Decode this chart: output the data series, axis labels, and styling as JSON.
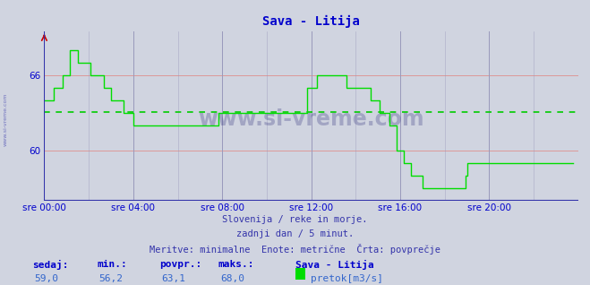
{
  "title": "Sava - Litija",
  "title_color": "#0000cc",
  "bg_color": "#d0d4e0",
  "plot_bg_color": "#d0d4e0",
  "line_color": "#00dd00",
  "avg_line_color": "#00cc00",
  "avg_value": 63.1,
  "grid_color_h": "#dd9999",
  "grid_color_v": "#9999bb",
  "ytick_labels": [
    "60",
    "66"
  ],
  "ytick_positions": [
    60,
    66
  ],
  "ylim_min": 56.0,
  "ylim_max": 69.5,
  "xtick_labels": [
    "sre 00:00",
    "sre 04:00",
    "sre 08:00",
    "sre 12:00",
    "sre 16:00",
    "sre 20:00"
  ],
  "xtick_positions": [
    0,
    48,
    96,
    144,
    192,
    240
  ],
  "xlim": [
    0,
    288
  ],
  "footer_line1": "Slovenija / reke in morje.",
  "footer_line2": "zadnji dan / 5 minut.",
  "footer_line3": "Meritve: minimalne  Enote: metrične  Črta: povprečje",
  "stats_labels": [
    "sedaj:",
    "min.:",
    "povpr.:",
    "maks.:"
  ],
  "stats_values": [
    "59,0",
    "56,2",
    "63,1",
    "68,0"
  ],
  "legend_label": "Sava - Litija",
  "legend_series": "pretok[m3/s]",
  "watermark": "www.si-vreme.com",
  "sidebar_text": "www.si-vreme.com",
  "flow_data": [
    64,
    64,
    64,
    64,
    64,
    65,
    65,
    65,
    65,
    65,
    66,
    66,
    66,
    66,
    68,
    68,
    68,
    68,
    67,
    67,
    67,
    67,
    67,
    67,
    67,
    66,
    66,
    66,
    66,
    66,
    66,
    66,
    65,
    65,
    65,
    65,
    64,
    64,
    64,
    64,
    64,
    64,
    64,
    63,
    63,
    63,
    63,
    63,
    62,
    62,
    62,
    62,
    62,
    62,
    62,
    62,
    62,
    62,
    62,
    62,
    62,
    62,
    62,
    62,
    62,
    62,
    62,
    62,
    62,
    62,
    62,
    62,
    62,
    62,
    62,
    62,
    62,
    62,
    62,
    62,
    62,
    62,
    62,
    62,
    62,
    62,
    62,
    62,
    62,
    62,
    62,
    62,
    62,
    62,
    63,
    63,
    63,
    63,
    63,
    63,
    63,
    63,
    63,
    63,
    63,
    63,
    63,
    63,
    63,
    63,
    63,
    63,
    63,
    63,
    63,
    63,
    63,
    63,
    63,
    63,
    63,
    63,
    63,
    63,
    63,
    63,
    63,
    63,
    63,
    63,
    63,
    63,
    63,
    63,
    63,
    63,
    63,
    63,
    63,
    63,
    63,
    63,
    65,
    65,
    65,
    65,
    65,
    66,
    66,
    66,
    66,
    66,
    66,
    66,
    66,
    66,
    66,
    66,
    66,
    66,
    66,
    66,
    66,
    65,
    65,
    65,
    65,
    65,
    65,
    65,
    65,
    65,
    65,
    65,
    65,
    65,
    64,
    64,
    64,
    64,
    64,
    63,
    63,
    63,
    63,
    63,
    62,
    62,
    62,
    62,
    60,
    60,
    60,
    60,
    59,
    59,
    59,
    59,
    58,
    58,
    58,
    58,
    58,
    58,
    57,
    57,
    57,
    57,
    57,
    57,
    57,
    57,
    57,
    57,
    57,
    57,
    57,
    57,
    57,
    57,
    57,
    57,
    57,
    57,
    57,
    57,
    57,
    58,
    59,
    59,
    59,
    59,
    59,
    59,
    59,
    59,
    59,
    59,
    59,
    59,
    59,
    59,
    59,
    59,
    59,
    59,
    59,
    59,
    59,
    59,
    59,
    59,
    59,
    59,
    59,
    59,
    59,
    59,
    59,
    59,
    59,
    59,
    59,
    59,
    59,
    59,
    59,
    59,
    59,
    59,
    59,
    59,
    59,
    59,
    59,
    59,
    59,
    59,
    59,
    59,
    59,
    59,
    59,
    59,
    59,
    59
  ]
}
